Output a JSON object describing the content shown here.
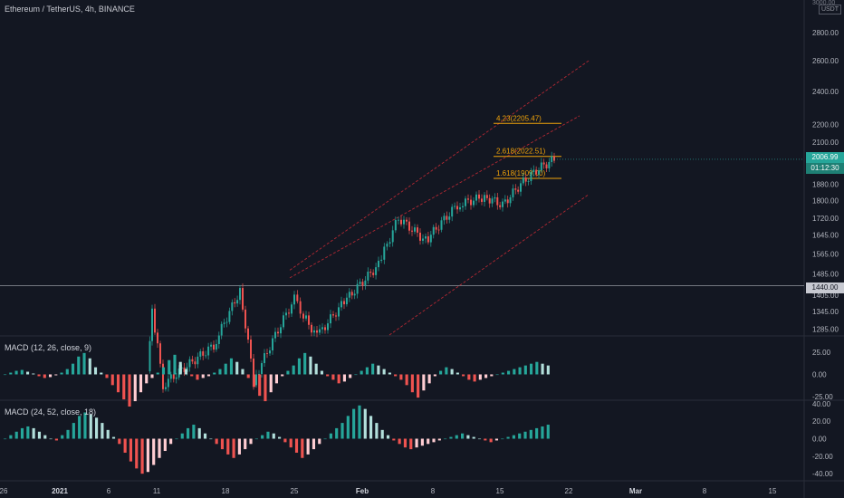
{
  "header": {
    "title": "Ethereum / TetherUS, 4h, BINANCE",
    "unit": "USDT"
  },
  "price_axis": {
    "ticks": [
      "2800.00",
      "2600.00",
      "2400.00",
      "2200.00",
      "2100.00",
      "1880.00",
      "1800.00",
      "1720.00",
      "1645.00",
      "1565.00",
      "1485.00",
      "1405.00",
      "1345.00",
      "1285.00"
    ],
    "top_partial": "3000.00",
    "last_price": "2006.99",
    "countdown": "01:12:30",
    "hline_value": "1440.00"
  },
  "macd1": {
    "label": "MACD (12, 26, close, 9)",
    "ticks": [
      "25.00",
      "0.00",
      "-25.00"
    ]
  },
  "macd2": {
    "label": "MACD (24, 52, close, 18)",
    "ticks": [
      "40.00",
      "20.00",
      "0.00",
      "-20.00",
      "-40.00"
    ]
  },
  "time_axis": {
    "labels": [
      "26",
      "2021",
      "6",
      "11",
      "18",
      "25",
      "Feb",
      "8",
      "15",
      "22",
      "Mar",
      "8",
      "15"
    ]
  },
  "fib_levels": [
    {
      "label": "4.23(2205.47)",
      "value": 2205.47
    },
    {
      "label": "2.618(2022.51)",
      "value": 2022.51
    },
    {
      "label": "1.618(1909.00)",
      "value": 1909.0
    }
  ],
  "colors": {
    "background": "#131722",
    "up": "#26a69a",
    "down": "#ef5350",
    "fib": "#f0a30a",
    "channel": "#b22833",
    "text": "#b2b5be"
  },
  "chart_data": [
    {
      "type": "candlestick",
      "title": "Ethereum / TetherUS, 4h, BINANCE",
      "y_scale": "log",
      "x_labels": [
        "26",
        "2021",
        "6",
        "11",
        "18",
        "25",
        "Feb",
        "8",
        "15",
        "22",
        "Mar",
        "8",
        "15"
      ],
      "close_path": [
        {
          "x": "Jan 6",
          "y": 1150
        },
        {
          "x": "Jan 10",
          "y": 1340
        },
        {
          "x": "Jan 12",
          "y": 1110
        },
        {
          "x": "Jan 17",
          "y": 1230
        },
        {
          "x": "Jan 19",
          "y": 1420
        },
        {
          "x": "Jan 21",
          "y": 1120
        },
        {
          "x": "Jan 24",
          "y": 1390
        },
        {
          "x": "Jan 26",
          "y": 1330
        },
        {
          "x": "Jan 28",
          "y": 1260
        },
        {
          "x": "Feb 1",
          "y": 1380
        },
        {
          "x": "Feb 3",
          "y": 1520
        },
        {
          "x": "Feb 5",
          "y": 1720
        },
        {
          "x": "Feb 7",
          "y": 1620
        },
        {
          "x": "Feb 10",
          "y": 1780
        },
        {
          "x": "Feb 13",
          "y": 1820
        },
        {
          "x": "Feb 15",
          "y": 1780
        },
        {
          "x": "Feb 17",
          "y": 1880
        },
        {
          "x": "Feb 19",
          "y": 1960
        },
        {
          "x": "Feb 20",
          "y": 2006.99
        }
      ],
      "horizontal_line": 1440.0,
      "last_price": 2006.99
    },
    {
      "type": "bar",
      "title": "MACD (12, 26, close, 9)",
      "ylim": [
        -35,
        35
      ],
      "histogram": [
        0,
        2,
        4,
        5,
        3,
        1,
        -2,
        -4,
        -3,
        -1,
        2,
        6,
        12,
        20,
        24,
        18,
        8,
        2,
        -4,
        -12,
        -20,
        -28,
        -36,
        -30,
        -20,
        -10,
        -4,
        2,
        8,
        16,
        22,
        14,
        6,
        -2,
        -6,
        -4,
        -2,
        2,
        6,
        12,
        18,
        14,
        6,
        -4,
        -14,
        -24,
        -30,
        -20,
        -10,
        -2,
        4,
        10,
        18,
        24,
        20,
        12,
        4,
        -2,
        -6,
        -10,
        -8,
        -4,
        0,
        4,
        8,
        12,
        10,
        6,
        2,
        -2,
        -6,
        -12,
        -20,
        -26,
        -18,
        -10,
        -2,
        4,
        8,
        6,
        2,
        -2,
        -6,
        -8,
        -6,
        -4,
        -2,
        0,
        2,
        4,
        6,
        8,
        10,
        12,
        14,
        12,
        10
      ]
    },
    {
      "type": "bar",
      "title": "MACD (24, 52, close, 18)",
      "ylim": [
        -45,
        45
      ],
      "histogram": [
        0,
        4,
        8,
        12,
        14,
        12,
        8,
        4,
        0,
        -2,
        4,
        10,
        18,
        26,
        30,
        28,
        24,
        18,
        10,
        2,
        -6,
        -16,
        -26,
        -34,
        -40,
        -38,
        -30,
        -22,
        -14,
        -6,
        0,
        6,
        12,
        16,
        12,
        6,
        0,
        -6,
        -12,
        -18,
        -22,
        -18,
        -12,
        -6,
        0,
        4,
        8,
        6,
        2,
        -4,
        -10,
        -16,
        -22,
        -18,
        -12,
        -6,
        0,
        6,
        12,
        18,
        26,
        34,
        38,
        34,
        26,
        18,
        10,
        4,
        -2,
        -6,
        -10,
        -12,
        -10,
        -8,
        -6,
        -4,
        -2,
        0,
        2,
        4,
        6,
        4,
        2,
        0,
        -2,
        -4,
        -2,
        0,
        2,
        4,
        6,
        8,
        10,
        12,
        14,
        16
      ]
    }
  ]
}
